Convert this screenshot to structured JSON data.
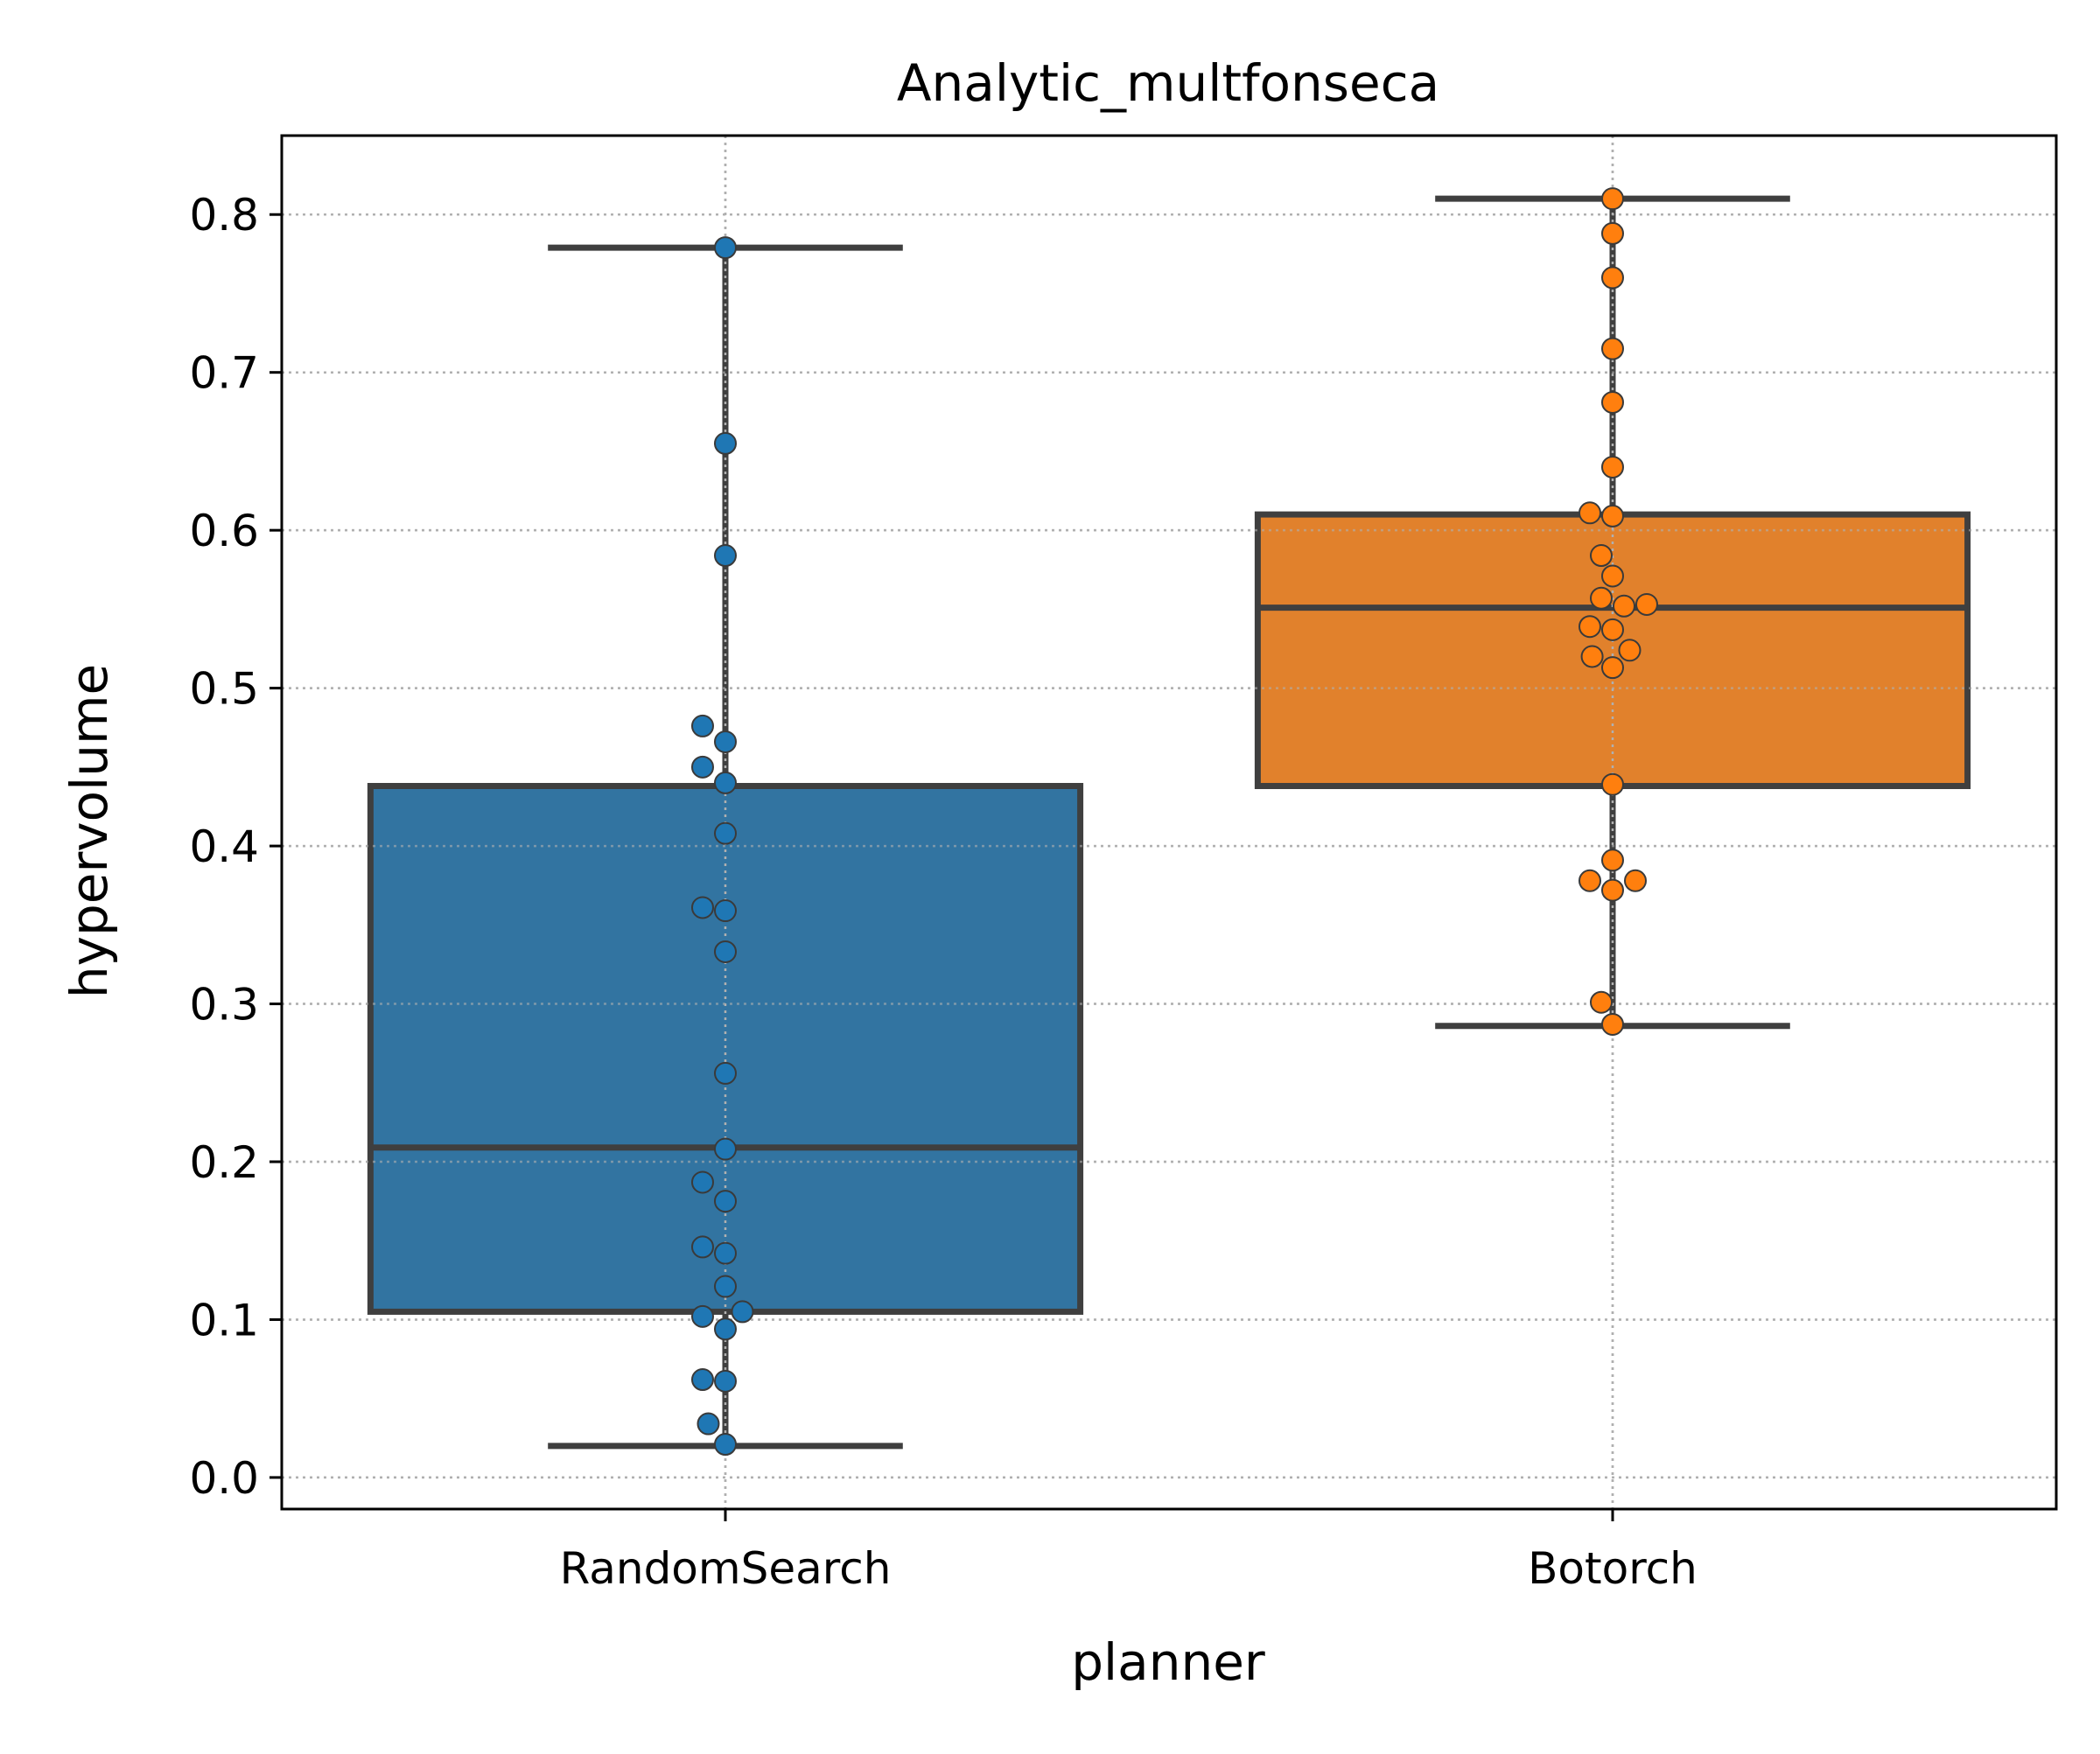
{
  "chart_data": {
    "type": "box",
    "title": "Analytic_multfonseca",
    "xlabel": "planner",
    "ylabel": "hypervolume",
    "ylim": [
      -0.02,
      0.85
    ],
    "yticks": [
      0.0,
      0.1,
      0.2,
      0.3,
      0.4,
      0.5,
      0.6,
      0.7,
      0.8
    ],
    "ytick_labels": [
      "0.0",
      "0.1",
      "0.2",
      "0.3",
      "0.4",
      "0.5",
      "0.6",
      "0.7",
      "0.8"
    ],
    "grid": true,
    "categories": [
      "RandomSearch",
      "Botorch"
    ],
    "series": [
      {
        "category": "RandomSearch",
        "box_color": "#3274a1",
        "point_color": "#1f77b4",
        "whisker_low": 0.02,
        "q1": 0.105,
        "median": 0.209,
        "q3": 0.438,
        "whisker_high": 0.779,
        "points": [
          {
            "y": 0.779,
            "off": 0
          },
          {
            "y": 0.655,
            "off": 0
          },
          {
            "y": 0.584,
            "off": 0
          },
          {
            "y": 0.476,
            "off": -2
          },
          {
            "y": 0.466,
            "off": 0
          },
          {
            "y": 0.45,
            "off": -2
          },
          {
            "y": 0.44,
            "off": 0
          },
          {
            "y": 0.408,
            "off": 0
          },
          {
            "y": 0.361,
            "off": -2
          },
          {
            "y": 0.359,
            "off": 0
          },
          {
            "y": 0.333,
            "off": 0
          },
          {
            "y": 0.256,
            "off": 0
          },
          {
            "y": 0.208,
            "off": 0
          },
          {
            "y": 0.187,
            "off": -2
          },
          {
            "y": 0.175,
            "off": 0
          },
          {
            "y": 0.146,
            "off": -2
          },
          {
            "y": 0.142,
            "off": 0
          },
          {
            "y": 0.121,
            "off": 0
          },
          {
            "y": 0.105,
            "off": 1.5
          },
          {
            "y": 0.102,
            "off": -2
          },
          {
            "y": 0.094,
            "off": 0
          },
          {
            "y": 0.062,
            "off": -2
          },
          {
            "y": 0.061,
            "off": 0
          },
          {
            "y": 0.034,
            "off": -1.5
          },
          {
            "y": 0.021,
            "off": 0
          }
        ]
      },
      {
        "category": "Botorch",
        "box_color": "#e1812c",
        "point_color": "#ff7f0e",
        "whisker_low": 0.286,
        "q1": 0.438,
        "median": 0.551,
        "q3": 0.61,
        "whisker_high": 0.81,
        "points": [
          {
            "y": 0.81,
            "off": 0
          },
          {
            "y": 0.788,
            "off": 0
          },
          {
            "y": 0.76,
            "off": 0
          },
          {
            "y": 0.715,
            "off": 0
          },
          {
            "y": 0.681,
            "off": 0
          },
          {
            "y": 0.64,
            "off": 0
          },
          {
            "y": 0.611,
            "off": -2
          },
          {
            "y": 0.609,
            "off": 0
          },
          {
            "y": 0.584,
            "off": -1
          },
          {
            "y": 0.571,
            "off": 0
          },
          {
            "y": 0.557,
            "off": -1
          },
          {
            "y": 0.553,
            "off": 3
          },
          {
            "y": 0.552,
            "off": 1
          },
          {
            "y": 0.539,
            "off": -2
          },
          {
            "y": 0.537,
            "off": 0
          },
          {
            "y": 0.524,
            "off": 1.5
          },
          {
            "y": 0.52,
            "off": -1.8
          },
          {
            "y": 0.513,
            "off": 0
          },
          {
            "y": 0.439,
            "off": 0
          },
          {
            "y": 0.391,
            "off": 0
          },
          {
            "y": 0.378,
            "off": -2
          },
          {
            "y": 0.378,
            "off": 2
          },
          {
            "y": 0.372,
            "off": 0
          },
          {
            "y": 0.301,
            "off": -1
          },
          {
            "y": 0.287,
            "off": 0
          }
        ]
      }
    ]
  }
}
